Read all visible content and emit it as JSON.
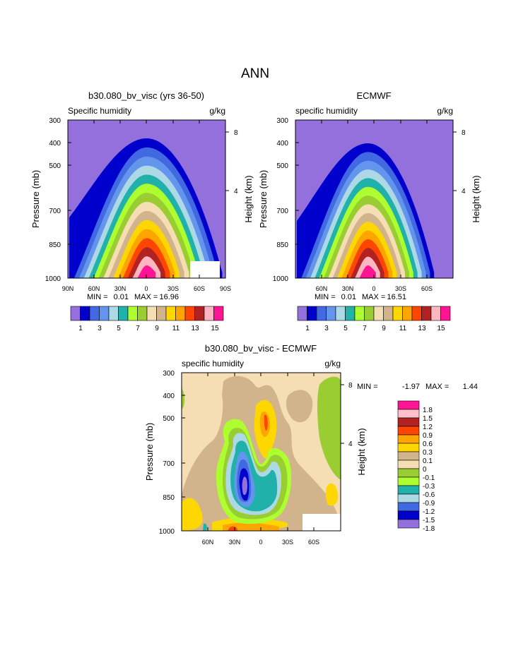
{
  "page_title": "ANN",
  "chart_data": [
    {
      "type": "heatmap",
      "title": "b30.080_bv_visc (yrs 36-50)",
      "subtitle_left": "Specific humidity",
      "units": "g/kg",
      "ylabel": "Pressure (mb)",
      "ylabel_right": "Height (km)",
      "y_ticks": [
        "300",
        "400",
        "500",
        "700",
        "850",
        "1000"
      ],
      "y_right_ticks": [
        "8",
        "4"
      ],
      "x_ticks": [
        "90N",
        "60N",
        "30N",
        "0",
        "30S",
        "60S",
        "90S"
      ],
      "min_label": "MIN =",
      "min": "0.01",
      "max_label": "MAX =",
      "max": "16.96",
      "contour_levels": [
        1,
        2,
        3,
        4,
        5,
        6,
        7,
        8,
        9,
        10,
        11,
        12,
        13,
        14,
        15
      ],
      "colorbar_labels": [
        "1",
        "3",
        "5",
        "7",
        "9",
        "11",
        "13",
        "15"
      ]
    },
    {
      "type": "heatmap",
      "title": "ECMWF",
      "subtitle_left": "specific humidity",
      "units": "g/kg",
      "ylabel": "Pressure (mb)",
      "ylabel_right": "Height (km)",
      "y_ticks": [
        "300",
        "400",
        "500",
        "700",
        "850",
        "1000"
      ],
      "y_right_ticks": [
        "8",
        "4"
      ],
      "x_ticks": [
        "60N",
        "30N",
        "0",
        "30S",
        "60S"
      ],
      "min_label": "MIN =",
      "min": "0.01",
      "max_label": "MAX =",
      "max": "16.51",
      "contour_levels": [
        1,
        2,
        3,
        4,
        5,
        6,
        7,
        8,
        9,
        10,
        11,
        12,
        13,
        14,
        15
      ],
      "colorbar_labels": [
        "1",
        "3",
        "5",
        "7",
        "9",
        "11",
        "13",
        "15"
      ]
    },
    {
      "type": "heatmap",
      "title": "b30.080_bv_visc - ECMWF",
      "subtitle_left": "specific humidity",
      "units": "g/kg",
      "ylabel": "Pressure (mb)",
      "ylabel_right": "Height (km)",
      "y_ticks": [
        "300",
        "400",
        "500",
        "700",
        "850",
        "1000"
      ],
      "y_right_ticks": [
        "8",
        "4"
      ],
      "x_ticks": [
        "60N",
        "30N",
        "0",
        "30S",
        "60S"
      ],
      "min_label": "MIN =",
      "min": "-1.97",
      "max_label": "MAX =",
      "max": "1.44",
      "contour_levels": [
        -1.8,
        -1.5,
        -1.2,
        -0.9,
        -0.6,
        -0.3,
        -0.1,
        0,
        0.1,
        0.3,
        0.6,
        0.9,
        1.2,
        1.5,
        1.8
      ],
      "colorbar_labels": [
        "1.8",
        "1.5",
        "1.2",
        "0.9",
        "0.6",
        "0.3",
        "0.1",
        "0",
        "-0.1",
        "-0.3",
        "-0.6",
        "-0.9",
        "-1.2",
        "-1.5",
        "-1.8"
      ]
    }
  ],
  "colors": {
    "top_scale": [
      "#9370db",
      "#0000cd",
      "#4169e1",
      "#6495ed",
      "#add8e6",
      "#20b2aa",
      "#adff2f",
      "#9acd32",
      "#f5deb3",
      "#d2b48c",
      "#ffd700",
      "#ffa500",
      "#ff4500",
      "#b22222",
      "#ffb6c1",
      "#ff1493"
    ],
    "diff_scale": [
      "#ff1493",
      "#ffc0cb",
      "#b22222",
      "#ff4500",
      "#ffa500",
      "#ffd700",
      "#d2b48c",
      "#f5deb3",
      "#9acd32",
      "#adff2f",
      "#20b2aa",
      "#add8e6",
      "#4169e1",
      "#0000cd",
      "#9370db"
    ]
  }
}
